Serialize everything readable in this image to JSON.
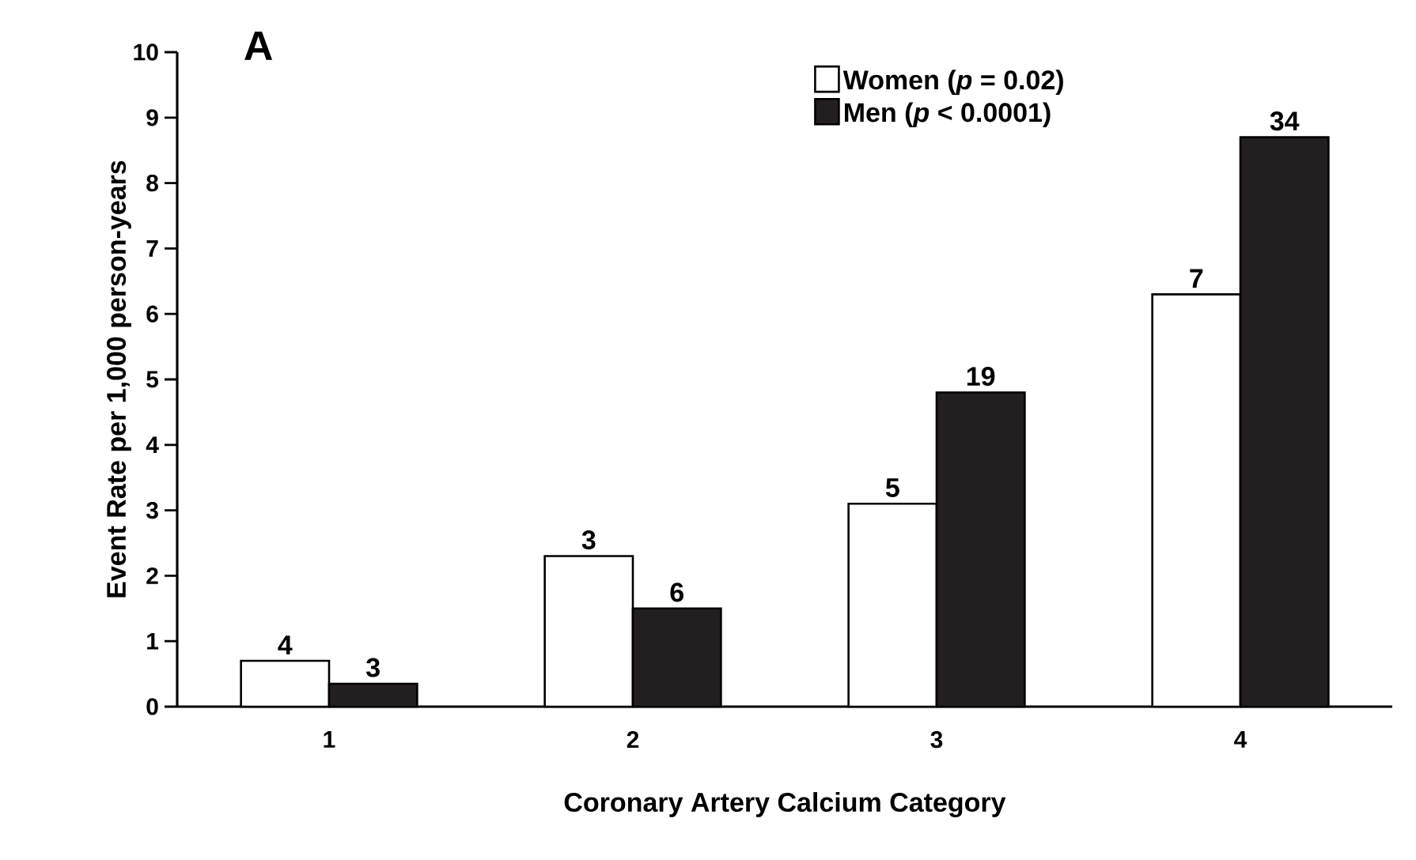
{
  "chart_data": {
    "type": "bar",
    "xlabel": "Coronary Artery Calcium Category",
    "ylabel": "Event Rate per 1,000 person-years",
    "annotations": [
      "A",
      {
        "text": "4",
        "x": "1",
        "y": 0.7
      },
      {
        "text": "3",
        "x": "1",
        "y": 0.35
      },
      {
        "text": "3",
        "x": "2",
        "y": 2.3
      },
      {
        "text": "6",
        "x": "2",
        "y": 1.5
      },
      {
        "text": "5",
        "x": "3",
        "y": 3.1
      },
      {
        "text": "19",
        "x": "3",
        "y": 4.8
      },
      {
        "text": "7",
        "x": "4",
        "y": 6.3
      },
      {
        "text": "34",
        "x": "4",
        "y": 8.7
      }
    ],
    "categories": [
      "1",
      "2",
      "3",
      "4"
    ],
    "series": [
      {
        "name": "Women (*p* = 0.02)",
        "color": "#ffffff",
        "values": [
          0.7,
          2.3,
          3.1,
          6.3
        ]
      },
      {
        "name": "Men (*p* < 0.0001)",
        "color": "#231f20",
        "values": [
          0.35,
          1.5,
          4.8,
          8.7
        ]
      }
    ],
    "ylim": [
      0,
      10
    ],
    "yticks": [
      0,
      1,
      2,
      3,
      4,
      5,
      6,
      7,
      8,
      9,
      10
    ],
    "grid": false,
    "legend": "top right"
  }
}
